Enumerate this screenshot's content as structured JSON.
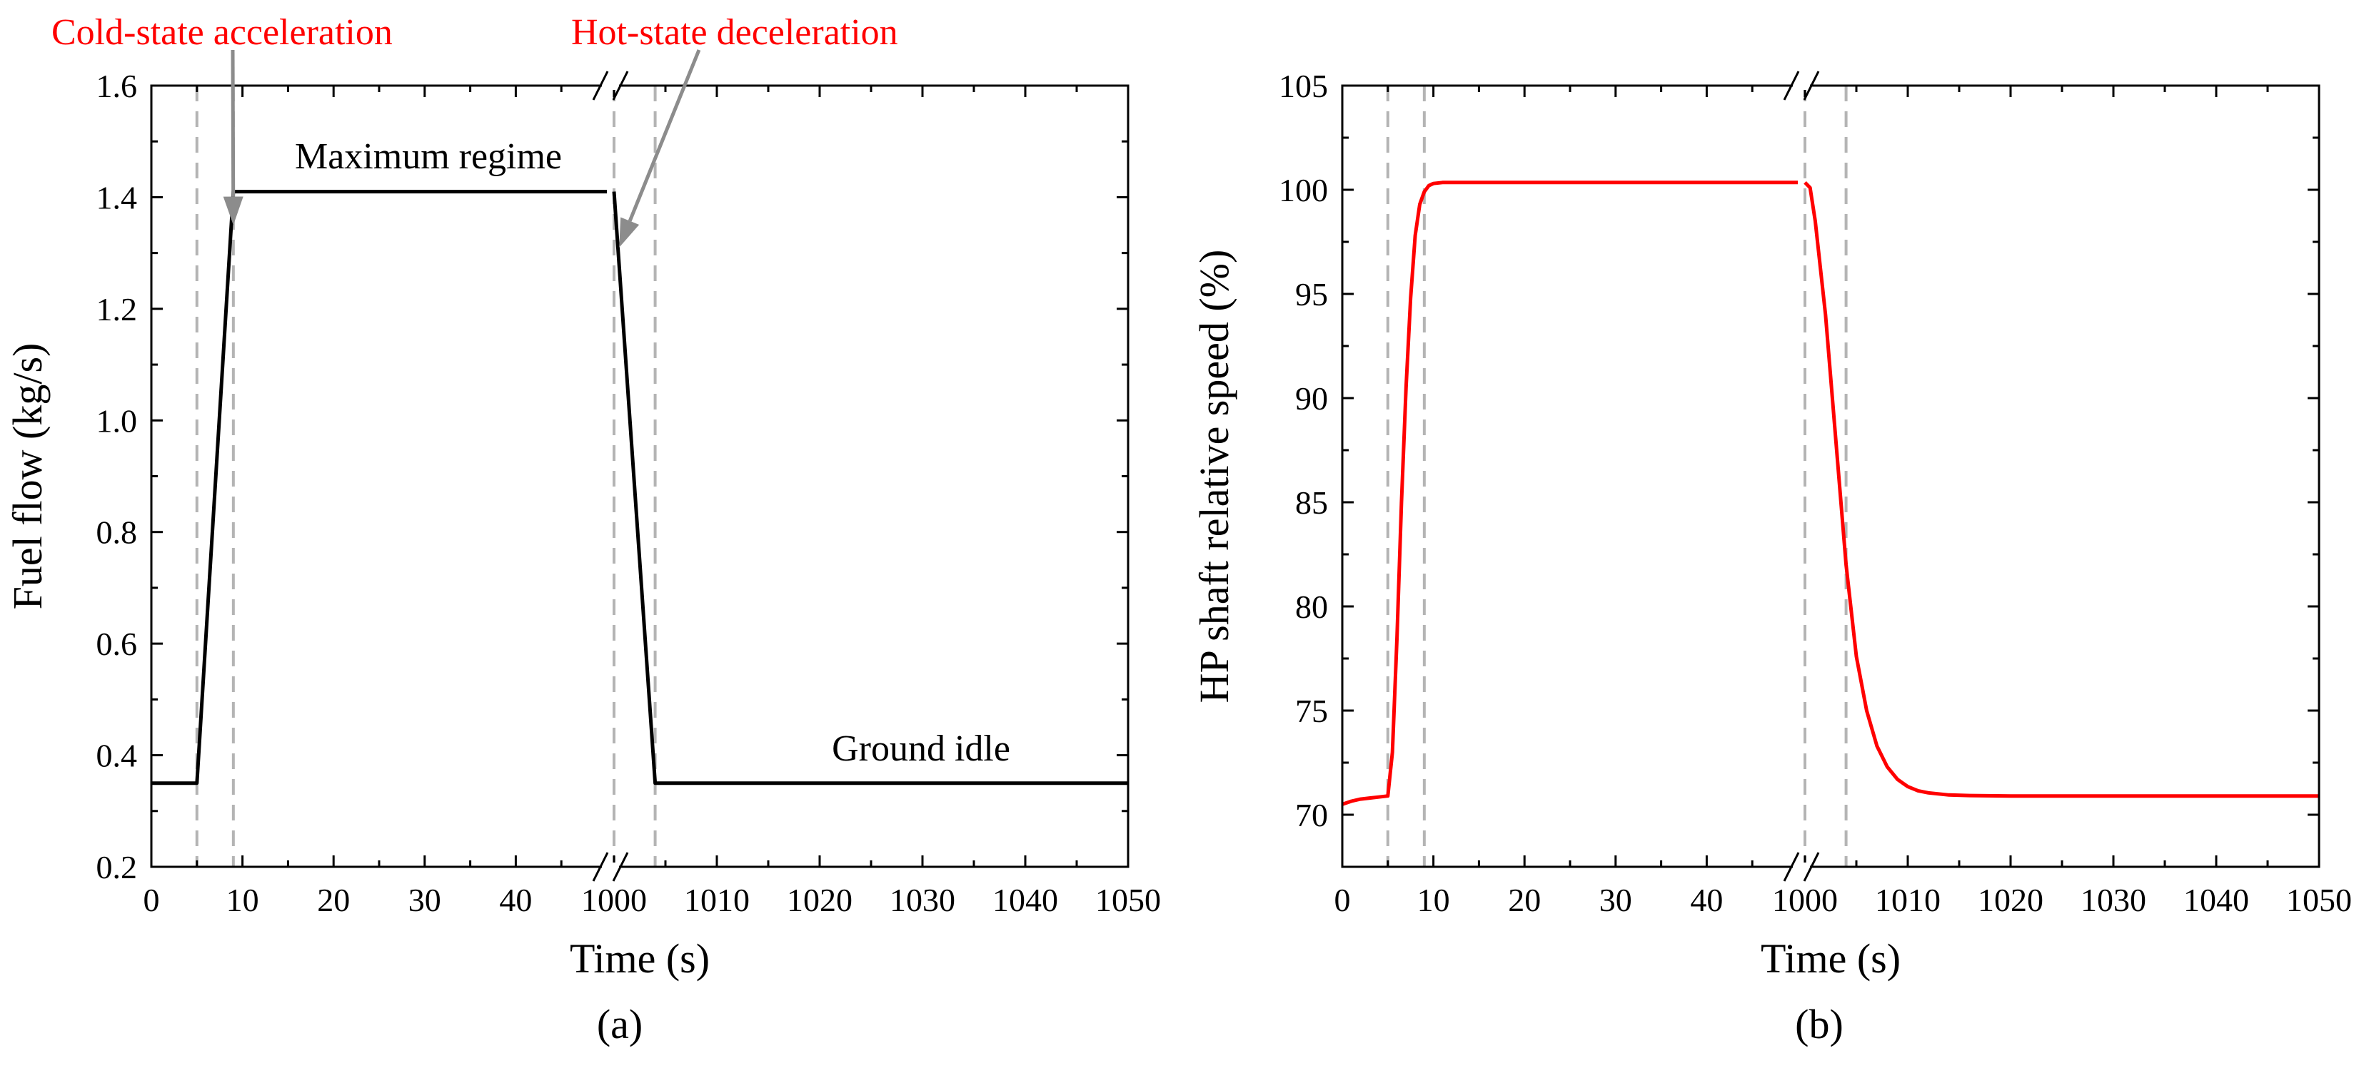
{
  "chart_data": [
    {
      "type": "line",
      "panel": "(a)",
      "xlabel": "Time (s)",
      "ylabel": "Fuel flow (kg/s)",
      "ylim": [
        0.2,
        1.6
      ],
      "yticks": [
        0.2,
        0.4,
        0.6,
        0.8,
        1.0,
        1.2,
        1.4,
        1.6
      ],
      "ytick_labels": [
        "0.2",
        "0.4",
        "0.6",
        "0.8",
        "1.0",
        "1.2",
        "1.4",
        "1.6"
      ],
      "x_segments": [
        {
          "xlim": [
            0,
            50
          ],
          "ticks": [
            0,
            10,
            20,
            30,
            40
          ],
          "tick_labels": [
            "0",
            "10",
            "20",
            "30",
            "40"
          ]
        },
        {
          "xlim": [
            1000,
            1050
          ],
          "ticks": [
            1000,
            1010,
            1020,
            1030,
            1040,
            1050
          ],
          "tick_labels": [
            "1000",
            "1010",
            "1020",
            "1030",
            "1040",
            "1050"
          ]
        }
      ],
      "axis_break": "x",
      "reference_lines_x": [
        5,
        9,
        1000,
        1004
      ],
      "line_color": "#000000",
      "series": [
        {
          "name": "Fuel flow",
          "segment": 0,
          "x": [
            0,
            5,
            9,
            50
          ],
          "y": [
            0.35,
            0.35,
            1.41,
            1.41
          ]
        },
        {
          "name": "Fuel flow",
          "segment": 1,
          "x": [
            1000,
            1004,
            1050
          ],
          "y": [
            1.41,
            0.35,
            0.35
          ]
        }
      ],
      "annotations": [
        {
          "text": "Cold-state acceleration",
          "color": "#ff0000",
          "points_to": [
            9,
            1.35
          ]
        },
        {
          "text": "Hot-state deceleration",
          "color": "#ff0000",
          "points_to": [
            1000.5,
            1.31
          ]
        },
        {
          "text": "Maximum regime",
          "color": "#000000"
        },
        {
          "text": "Ground idle",
          "color": "#000000"
        }
      ]
    },
    {
      "type": "line",
      "panel": "(b)",
      "xlabel": "Time (s)",
      "ylabel": "HP shaft relative speed (%)",
      "ylim": [
        67.5,
        105
      ],
      "yticks": [
        70,
        75,
        80,
        85,
        90,
        95,
        100,
        105
      ],
      "ytick_labels": [
        "70",
        "75",
        "80",
        "85",
        "90",
        "95",
        "100",
        "105"
      ],
      "x_segments": [
        {
          "xlim": [
            0,
            50
          ],
          "ticks": [
            0,
            10,
            20,
            30,
            40
          ],
          "tick_labels": [
            "0",
            "10",
            "20",
            "30",
            "40"
          ]
        },
        {
          "xlim": [
            1000,
            1050
          ],
          "ticks": [
            1000,
            1010,
            1020,
            1030,
            1040,
            1050
          ],
          "tick_labels": [
            "1000",
            "1010",
            "1020",
            "1030",
            "1040",
            "1050"
          ]
        }
      ],
      "axis_break": "x",
      "reference_lines_x": [
        5,
        9,
        1000,
        1004
      ],
      "line_color": "#ff0000",
      "series": [
        {
          "name": "HP shaft relative speed",
          "segment": 0,
          "x": [
            0,
            1,
            2,
            3,
            4,
            5,
            5.5,
            6,
            6.5,
            7,
            7.5,
            8,
            8.5,
            9,
            9.5,
            10,
            11,
            12,
            14,
            20,
            30,
            40,
            50
          ],
          "y": [
            70.5,
            70.65,
            70.75,
            70.8,
            70.85,
            70.9,
            73.0,
            78.5,
            85.0,
            90.5,
            94.8,
            97.8,
            99.3,
            99.9,
            100.2,
            100.3,
            100.35,
            100.35,
            100.35,
            100.35,
            100.35,
            100.35,
            100.35
          ]
        },
        {
          "name": "HP shaft relative speed",
          "segment": 1,
          "x": [
            1000,
            1000.5,
            1001,
            1002,
            1003,
            1004,
            1005,
            1006,
            1007,
            1008,
            1009,
            1010,
            1011,
            1012,
            1014,
            1016,
            1020,
            1030,
            1040,
            1050
          ],
          "y": [
            100.35,
            100.1,
            98.5,
            94.0,
            88.0,
            82.0,
            77.6,
            75.0,
            73.3,
            72.3,
            71.7,
            71.35,
            71.15,
            71.05,
            70.95,
            70.92,
            70.9,
            70.9,
            70.9,
            70.9
          ]
        }
      ],
      "annotations": []
    }
  ]
}
